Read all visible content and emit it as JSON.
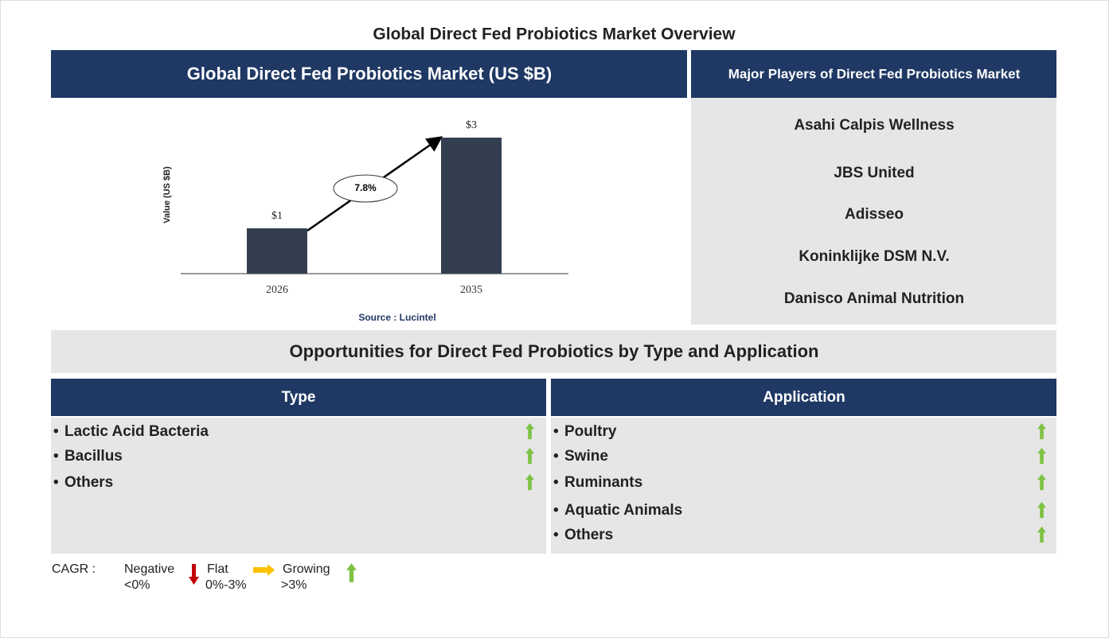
{
  "title": "Global Direct Fed Probiotics Market Overview",
  "chart_data": {
    "type": "bar",
    "title": "Global Direct Fed Probiotics Market (US $B)",
    "categories": [
      "2026",
      "2035"
    ],
    "values": [
      1,
      3
    ],
    "value_labels": [
      "$1",
      "$3"
    ],
    "y_label": "Value (US $B)",
    "color": "#333f50",
    "annotation": "7.8%",
    "source": "Source : Lucintel"
  },
  "players": {
    "title": "Major Players of Direct Fed Probiotics Market",
    "items": [
      "Asahi Calpis Wellness",
      "JBS United",
      "Adisseo",
      "Koninklijke DSM N.V.",
      "Danisco Animal Nutrition"
    ]
  },
  "opportunities": {
    "title": "Opportunities for Direct Fed Probiotics by Type and Application",
    "type": {
      "title": "Type",
      "items": [
        "Lactic Acid Bacteria",
        "Bacillus",
        "Others"
      ]
    },
    "application": {
      "title": "Application",
      "items": [
        "Poultry",
        "Swine",
        "Ruminants",
        "Aquatic Animals",
        "Others"
      ]
    }
  },
  "legend": {
    "label": "CAGR :",
    "negative": "Negative",
    "negative_range": "<0%",
    "flat": "Flat",
    "flat_range": "0%-3%",
    "growing": "Growing",
    "growing_range": ">3%"
  }
}
